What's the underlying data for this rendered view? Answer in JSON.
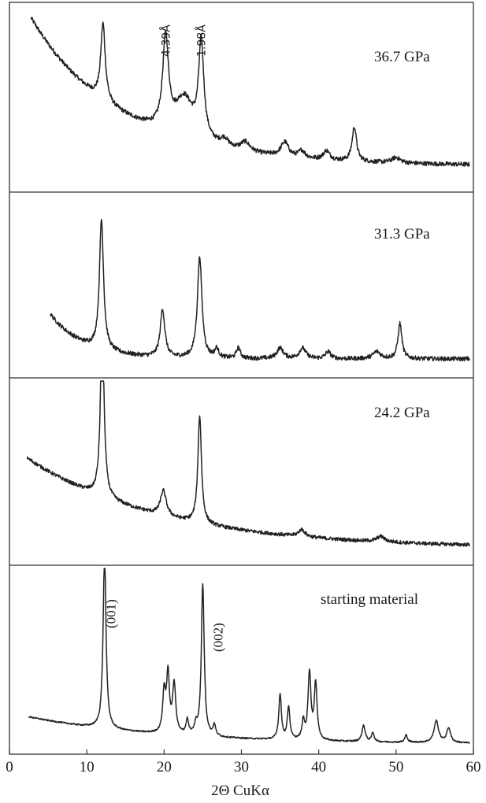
{
  "chart_data": {
    "type": "line",
    "xlabel": "2Θ CuKα",
    "xlim": [
      0,
      60
    ],
    "x_ticks": [
      0,
      10,
      20,
      30,
      40,
      50,
      60
    ],
    "x_tick_labels": [
      "0",
      "10",
      "20",
      "30",
      "40",
      "50",
      "60"
    ],
    "panels": [
      {
        "label": "36.7 GPa",
        "x_start": 2.8,
        "baseline_start": 0.93,
        "baseline_end": 0.12,
        "decay": 0.2,
        "noise": 0.012,
        "peaks": [
          {
            "x": 12.1,
            "h": 0.42,
            "w": 0.35
          },
          {
            "x": 20.2,
            "h": 0.5,
            "w": 0.45
          },
          {
            "x": 22.6,
            "h": 0.22,
            "w": 1.5
          },
          {
            "x": 24.8,
            "h": 0.52,
            "w": 0.4
          },
          {
            "x": 27.8,
            "h": 0.04,
            "w": 0.6
          },
          {
            "x": 30.5,
            "h": 0.05,
            "w": 0.7
          },
          {
            "x": 35.6,
            "h": 0.08,
            "w": 0.6
          },
          {
            "x": 37.8,
            "h": 0.04,
            "w": 0.5
          },
          {
            "x": 41.0,
            "h": 0.05,
            "w": 0.5
          },
          {
            "x": 44.6,
            "h": 0.19,
            "w": 0.35
          },
          {
            "x": 50.0,
            "h": 0.03,
            "w": 0.7
          }
        ],
        "annotations": [
          {
            "text": "4.39Å",
            "x": 20.2
          },
          {
            "text": "1.98Å",
            "x": 24.8
          }
        ]
      },
      {
        "label": "31.3 GPa",
        "x_start": 5.3,
        "baseline_start": 0.33,
        "baseline_end": 0.08,
        "decay": 0.08,
        "noise": 0.012,
        "peaks": [
          {
            "x": 11.9,
            "h": 0.73,
            "w": 0.32
          },
          {
            "x": 19.8,
            "h": 0.27,
            "w": 0.35
          },
          {
            "x": 24.6,
            "h": 0.57,
            "w": 0.35
          },
          {
            "x": 26.8,
            "h": 0.05,
            "w": 0.3
          },
          {
            "x": 29.6,
            "h": 0.06,
            "w": 0.3
          },
          {
            "x": 35.0,
            "h": 0.06,
            "w": 0.5
          },
          {
            "x": 37.9,
            "h": 0.06,
            "w": 0.5
          },
          {
            "x": 41.2,
            "h": 0.04,
            "w": 0.4
          },
          {
            "x": 47.5,
            "h": 0.04,
            "w": 0.6
          },
          {
            "x": 50.5,
            "h": 0.2,
            "w": 0.3
          }
        ],
        "annotations": []
      },
      {
        "label": "24.2 GPa",
        "x_start": 2.3,
        "baseline_start": 0.57,
        "baseline_end": 0.07,
        "decay": 0.3,
        "noise": 0.01,
        "peaks": [
          {
            "x": 12.0,
            "h": 0.97,
            "w": 0.28
          },
          {
            "x": 19.9,
            "h": 0.14,
            "w": 0.45
          },
          {
            "x": 24.6,
            "h": 0.6,
            "w": 0.28
          },
          {
            "x": 37.8,
            "h": 0.04,
            "w": 0.5
          },
          {
            "x": 48.0,
            "h": 0.03,
            "w": 0.6
          }
        ],
        "annotations": []
      },
      {
        "label": "starting material",
        "x_start": 2.5,
        "baseline_start": 0.18,
        "baseline_end": 0.03,
        "decay": 0.3,
        "noise": 0.004,
        "peaks": [
          {
            "x": 12.3,
            "h": 0.99,
            "w": 0.22
          },
          {
            "x": 20.0,
            "h": 0.22,
            "w": 0.22
          },
          {
            "x": 20.5,
            "h": 0.32,
            "w": 0.22
          },
          {
            "x": 21.3,
            "h": 0.27,
            "w": 0.25
          },
          {
            "x": 23.0,
            "h": 0.08,
            "w": 0.2
          },
          {
            "x": 24.1,
            "h": 0.05,
            "w": 0.2
          },
          {
            "x": 25.0,
            "h": 0.84,
            "w": 0.22
          },
          {
            "x": 26.5,
            "h": 0.06,
            "w": 0.2
          },
          {
            "x": 35.0,
            "h": 0.25,
            "w": 0.2
          },
          {
            "x": 36.1,
            "h": 0.18,
            "w": 0.2
          },
          {
            "x": 38.0,
            "h": 0.1,
            "w": 0.2
          },
          {
            "x": 38.8,
            "h": 0.37,
            "w": 0.22
          },
          {
            "x": 39.6,
            "h": 0.31,
            "w": 0.22
          },
          {
            "x": 45.8,
            "h": 0.09,
            "w": 0.25
          },
          {
            "x": 47.0,
            "h": 0.05,
            "w": 0.2
          },
          {
            "x": 51.3,
            "h": 0.04,
            "w": 0.2
          },
          {
            "x": 55.2,
            "h": 0.12,
            "w": 0.35
          },
          {
            "x": 56.8,
            "h": 0.08,
            "w": 0.3
          }
        ],
        "annotations": [
          {
            "text": "(001)",
            "x": 12.3
          },
          {
            "text": "(002)",
            "x": 25.0
          }
        ]
      }
    ],
    "grid": false,
    "legend": "none"
  }
}
